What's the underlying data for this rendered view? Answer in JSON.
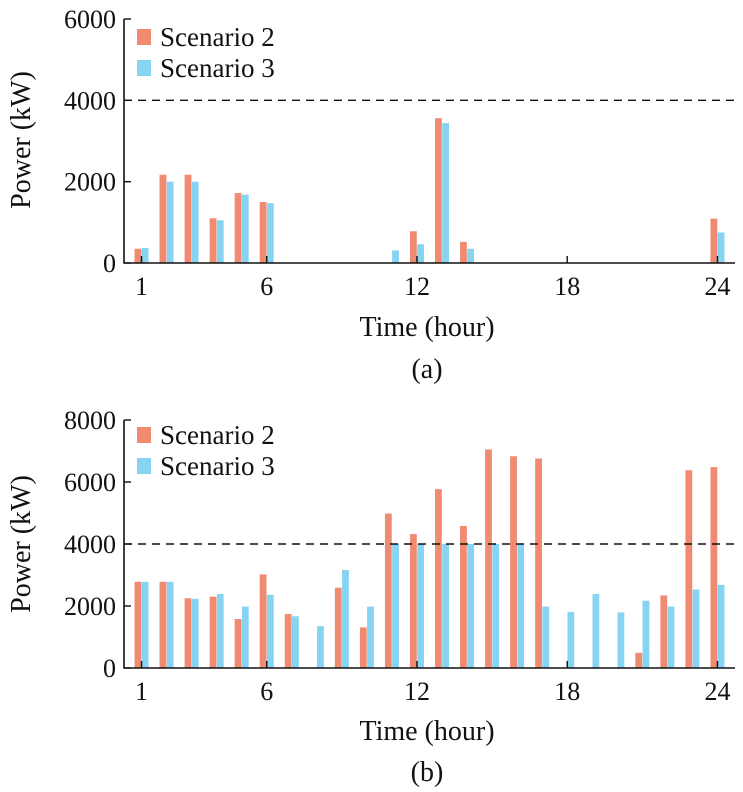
{
  "colors": {
    "scenario2": "#F08A70",
    "scenario3": "#87D3F2",
    "axis": "#111111"
  },
  "chart_data": [
    {
      "id": "a",
      "type": "bar",
      "panel_label": "(a)",
      "xlabel": "Time (hour)",
      "ylabel": "Power (kW)",
      "ylim": [
        0,
        6000
      ],
      "yticks": [
        0,
        2000,
        4000,
        6000
      ],
      "ytick_labels": [
        "0",
        "2000",
        "4000",
        "6000"
      ],
      "xlim": [
        0.3,
        24.7
      ],
      "xticks": [
        1,
        6,
        12,
        18,
        24
      ],
      "xtick_labels": [
        "1",
        "6",
        "12",
        "18",
        "24"
      ],
      "categories": [
        1,
        2,
        3,
        4,
        5,
        6,
        7,
        8,
        9,
        10,
        11,
        12,
        13,
        14,
        15,
        16,
        17,
        18,
        19,
        20,
        21,
        22,
        23,
        24
      ],
      "reference_line": 4000,
      "legend_position": "top-left",
      "series": [
        {
          "name": "Scenario 2",
          "color": "#F08A70",
          "values": [
            350,
            2170,
            2170,
            1100,
            1720,
            1500,
            0,
            0,
            0,
            0,
            0,
            780,
            3560,
            520,
            0,
            0,
            0,
            0,
            0,
            0,
            0,
            0,
            0,
            1090
          ]
        },
        {
          "name": "Scenario 3",
          "color": "#87D3F2",
          "values": [
            370,
            2000,
            2000,
            1050,
            1680,
            1470,
            0,
            0,
            0,
            0,
            310,
            460,
            3440,
            350,
            0,
            0,
            0,
            0,
            0,
            0,
            0,
            0,
            0,
            750
          ]
        }
      ]
    },
    {
      "id": "b",
      "type": "bar",
      "panel_label": "(b)",
      "xlabel": "Time (hour)",
      "ylabel": "Power (kW)",
      "ylim": [
        0,
        8000
      ],
      "yticks": [
        0,
        2000,
        4000,
        6000,
        8000
      ],
      "ytick_labels": [
        "0",
        "2000",
        "4000",
        "6000",
        "8000"
      ],
      "xlim": [
        0.3,
        24.7
      ],
      "xticks": [
        1,
        6,
        12,
        18,
        24
      ],
      "xtick_labels": [
        "1",
        "6",
        "12",
        "18",
        "24"
      ],
      "categories": [
        1,
        2,
        3,
        4,
        5,
        6,
        7,
        8,
        9,
        10,
        11,
        12,
        13,
        14,
        15,
        16,
        17,
        18,
        19,
        20,
        21,
        22,
        23,
        24
      ],
      "reference_line": 4000,
      "legend_position": "top-left",
      "series": [
        {
          "name": "Scenario 2",
          "color": "#F08A70",
          "values": [
            2780,
            2780,
            2250,
            2300,
            1580,
            3020,
            1740,
            0,
            2590,
            1310,
            4980,
            4320,
            5770,
            4580,
            7050,
            6830,
            6760,
            0,
            0,
            0,
            490,
            2340,
            6380,
            6480
          ]
        },
        {
          "name": "Scenario 3",
          "color": "#87D3F2",
          "values": [
            2780,
            2780,
            2230,
            2390,
            1980,
            2360,
            1670,
            1350,
            3160,
            1980,
            4000,
            4000,
            4000,
            4000,
            4000,
            4000,
            1980,
            1810,
            2390,
            1790,
            2170,
            1980,
            2530,
            2680
          ]
        }
      ]
    }
  ]
}
